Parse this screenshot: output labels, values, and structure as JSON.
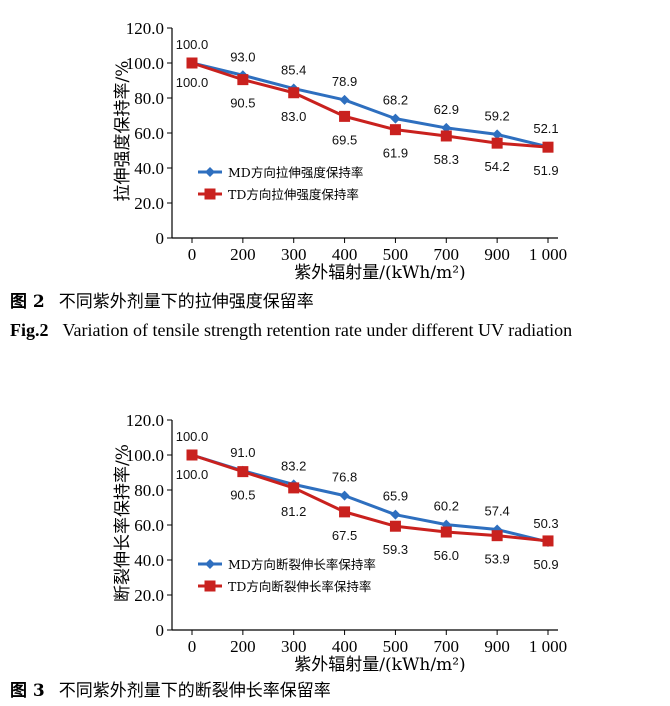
{
  "charts": [
    {
      "caption_num": "图 2",
      "caption_text": "不同紫外剂量下的拉伸强度保留率",
      "caption_en_num": "Fig.2",
      "caption_en_text": "Variation of tensile strength retention rate under different UV radiation"
    },
    {
      "caption_num": "图 3",
      "caption_text": "不同紫外剂量下的断裂伸长率保留率"
    }
  ],
  "colors": {
    "md": "#2e6fbf",
    "td": "#c9211e",
    "axis": "#000000"
  },
  "chart_data": [
    {
      "type": "line",
      "categories": [
        "0",
        "200",
        "300",
        "400",
        "500",
        "700",
        "900",
        "1 000"
      ],
      "xlabel": "紫外辐射量/(kWh/m²)",
      "ylabel": "拉伸强度保持率/%",
      "ylim": [
        0,
        120
      ],
      "yticks": [
        "0",
        "20.0",
        "40.0",
        "60.0",
        "80.0",
        "100.0",
        "120.0"
      ],
      "legend_position": "bottom-left",
      "grid": false,
      "series": [
        {
          "name": "MD方向拉伸强度保持率",
          "marker": "diamond",
          "values": [
            100.0,
            93.0,
            85.4,
            78.9,
            68.2,
            62.9,
            59.2,
            52.1
          ],
          "labels": [
            "100.0",
            "93.0",
            "85.4",
            "78.9",
            "68.2",
            "62.9",
            "59.2",
            "52.1"
          ]
        },
        {
          "name": "TD方向拉伸强度保持率",
          "marker": "square",
          "values": [
            100.0,
            90.5,
            83.0,
            69.5,
            61.9,
            58.3,
            54.2,
            51.9
          ],
          "labels": [
            "100.0",
            "90.5",
            "83.0",
            "69.5",
            "61.9",
            "58.3",
            "54.2",
            "51.9"
          ]
        }
      ]
    },
    {
      "type": "line",
      "categories": [
        "0",
        "200",
        "300",
        "400",
        "500",
        "700",
        "900",
        "1 000"
      ],
      "xlabel": "紫外辐射量/(kWh/m²)",
      "ylabel": "断裂伸长率保持率/%",
      "ylim": [
        0,
        120
      ],
      "yticks": [
        "0",
        "20.0",
        "40.0",
        "60.0",
        "80.0",
        "100.0",
        "120.0"
      ],
      "legend_position": "bottom-left",
      "grid": false,
      "series": [
        {
          "name": "MD方向断裂伸长率保持率",
          "marker": "diamond",
          "values": [
            100.0,
            91.0,
            83.2,
            76.8,
            65.9,
            60.2,
            57.4,
            50.3
          ],
          "labels": [
            "100.0",
            "91.0",
            "83.2",
            "76.8",
            "65.9",
            "60.2",
            "57.4",
            "50.3"
          ]
        },
        {
          "name": "TD方向断裂伸长率保持率",
          "marker": "square",
          "values": [
            100.0,
            90.5,
            81.2,
            67.5,
            59.3,
            56.0,
            53.9,
            50.9
          ],
          "labels": [
            "100.0",
            "90.5",
            "81.2",
            "67.5",
            "59.3",
            "56.0",
            "53.9",
            "50.9"
          ]
        }
      ]
    }
  ]
}
